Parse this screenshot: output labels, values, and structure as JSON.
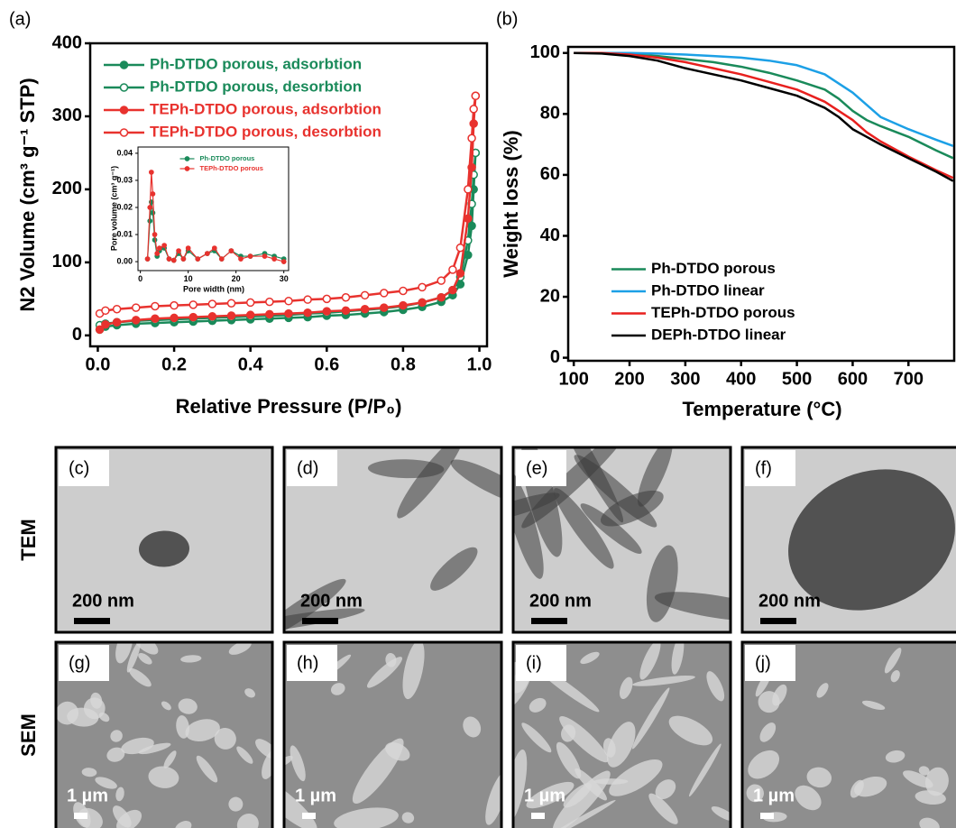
{
  "chart_data": [
    {
      "type": "line",
      "panel": "(a)",
      "xlabel": "Relative Pressure (P/P₀)",
      "ylabel": "N2 Volume (cm³ g⁻¹ STP)",
      "x": [
        0.005,
        0.02,
        0.05,
        0.1,
        0.15,
        0.2,
        0.25,
        0.3,
        0.35,
        0.4,
        0.45,
        0.5,
        0.55,
        0.6,
        0.65,
        0.7,
        0.75,
        0.8,
        0.85,
        0.9,
        0.93,
        0.95,
        0.97,
        0.98,
        0.985,
        0.99
      ],
      "series": [
        {
          "name": "Ph-DTDO porous, adsorbtion",
          "color": "#1a8a5a",
          "marker": "filled",
          "values": [
            8,
            12,
            14,
            16,
            17,
            18,
            19,
            20,
            21,
            22,
            23,
            24,
            25,
            27,
            28,
            30,
            32,
            35,
            39,
            46,
            55,
            70,
            110,
            150,
            200,
            250
          ]
        },
        {
          "name": "Ph-DTDO porous, desorbtion",
          "color": "#1a8a5a",
          "marker": "open",
          "values": [
            14,
            16,
            18,
            20,
            21,
            22,
            23,
            24,
            25,
            26,
            27,
            28,
            30,
            31,
            33,
            35,
            37,
            40,
            45,
            52,
            62,
            80,
            130,
            180,
            220,
            250
          ]
        },
        {
          "name": "TEPh-DTDO porous, adsorbtion",
          "color": "#e8322e",
          "marker": "filled",
          "values": [
            8,
            15,
            18,
            21,
            23,
            24,
            25,
            26,
            27,
            28,
            29,
            30,
            31,
            33,
            34,
            36,
            38,
            41,
            45,
            52,
            62,
            85,
            160,
            230,
            290,
            328
          ]
        },
        {
          "name": "TEPh-DTDO porous, desorbtion",
          "color": "#e8322e",
          "marker": "open",
          "values": [
            30,
            34,
            36,
            38,
            40,
            41,
            42,
            43,
            44,
            45,
            46,
            47,
            49,
            50,
            52,
            55,
            58,
            61,
            66,
            75,
            90,
            120,
            200,
            270,
            310,
            328
          ]
        }
      ],
      "xlim": [
        -0.02,
        1.02
      ],
      "ylim": [
        -15,
        400
      ],
      "xticks": [
        {
          "value": 0,
          "label": "0.0"
        },
        {
          "value": 0.2,
          "label": "0.2"
        },
        {
          "value": 0.4,
          "label": "0.4"
        },
        {
          "value": 0.6,
          "label": "0.6"
        },
        {
          "value": 0.8,
          "label": "0.8"
        },
        {
          "value": 1,
          "label": "1.0"
        }
      ],
      "yticks": [
        0,
        100,
        200,
        300,
        400
      ],
      "legend": "upper left",
      "grid": false
    },
    {
      "type": "line",
      "xlabel": "Pore width (nm)",
      "ylabel": "Pore volume (cm³ g⁻¹)",
      "x": [
        1.5,
        2,
        2.3,
        2.6,
        3,
        3.5,
        4,
        5,
        6,
        7,
        8,
        9,
        10,
        12,
        14,
        15.5,
        17,
        19,
        21,
        23,
        26,
        28,
        30
      ],
      "series": [
        {
          "name": "Ph-DTDO porous",
          "color": "#1a8a5a",
          "marker": "filled",
          "values": [
            0.001,
            0.015,
            0.022,
            0.018,
            0.008,
            0.002,
            0.004,
            0.005,
            0.001,
            0.0005,
            0.003,
            0.001,
            0.004,
            0.001,
            0.003,
            0.004,
            0.001,
            0.004,
            0.002,
            0.002,
            0.003,
            0.002,
            0.001
          ]
        },
        {
          "name": "TEPh-DTDO porous",
          "color": "#e8322e",
          "marker": "filled",
          "values": [
            0.001,
            0.02,
            0.033,
            0.025,
            0.01,
            0.003,
            0.005,
            0.006,
            0.001,
            0.0005,
            0.004,
            0.001,
            0.005,
            0.001,
            0.003,
            0.005,
            0.001,
            0.004,
            0.001,
            0.002,
            0.002,
            0.001,
            0
          ]
        }
      ],
      "xlim": [
        -0.5,
        31
      ],
      "ylim": [
        -0.0033,
        0.0423
      ],
      "xticks": [
        0,
        10,
        20,
        30
      ],
      "yticks": [
        {
          "value": 0,
          "label": "0.00"
        },
        {
          "value": 0.01,
          "label": "0.01"
        },
        {
          "value": 0.02,
          "label": "0.02"
        },
        {
          "value": 0.03,
          "label": "0.03"
        },
        {
          "value": 0.04,
          "label": "0.04"
        }
      ],
      "legend": "upper center",
      "grid": false
    },
    {
      "type": "line",
      "panel": "(b)",
      "xlabel": "Temperature (°C)",
      "ylabel": "Weight loss (%)",
      "x": [
        100,
        150,
        200,
        250,
        300,
        350,
        400,
        450,
        500,
        550,
        575,
        600,
        625,
        650,
        700,
        750,
        780
      ],
      "series": [
        {
          "name": "Ph-DTDO porous",
          "color": "#1a8a5a",
          "marker": "none",
          "values": [
            100,
            100,
            99.5,
            99,
            98,
            97,
            95.5,
            93.5,
            91,
            88,
            85,
            81,
            78,
            76,
            72.5,
            68,
            65.5
          ]
        },
        {
          "name": "Ph-DTDO linear",
          "color": "#1ca0e6",
          "marker": "none",
          "values": [
            100,
            100,
            100,
            99.8,
            99.5,
            99,
            98.5,
            97.5,
            96,
            93,
            90,
            87,
            83,
            79,
            75,
            71.5,
            69.5
          ]
        },
        {
          "name": "TEPh-DTDO porous",
          "color": "#e8201e",
          "marker": "none",
          "values": [
            100,
            100,
            99.5,
            98.5,
            97,
            95,
            93,
            90.5,
            88,
            84,
            81,
            78,
            74,
            71,
            66,
            61.5,
            59
          ]
        },
        {
          "name": "DEPh-DTDO linear",
          "color": "#000000",
          "marker": "none",
          "values": [
            100,
            99.8,
            99,
            97.5,
            95,
            93,
            91,
            88.5,
            86,
            82,
            79,
            75,
            72.5,
            70,
            65.5,
            61,
            58
          ]
        }
      ],
      "xlim": [
        90,
        782
      ],
      "ylim": [
        -1,
        102
      ],
      "xticks": [
        100,
        200,
        300,
        400,
        500,
        600,
        700
      ],
      "yticks": [
        0,
        20,
        40,
        60,
        80,
        100
      ],
      "legend": "lower left",
      "grid": false
    }
  ],
  "micrographs": {
    "rows": [
      {
        "label": "TEM",
        "panels": [
          {
            "label": "(c)",
            "scale_bar": "200 nm"
          },
          {
            "label": "(d)",
            "scale_bar": "200 nm"
          },
          {
            "label": "(e)",
            "scale_bar": "200 nm"
          },
          {
            "label": "(f)",
            "scale_bar": "200 nm"
          }
        ]
      },
      {
        "label": "SEM",
        "panels": [
          {
            "label": "(g)",
            "scale_bar": "1 µm"
          },
          {
            "label": "(h)",
            "scale_bar": "1 µm"
          },
          {
            "label": "(i)",
            "scale_bar": "1 µm"
          },
          {
            "label": "(j)",
            "scale_bar": "1 µm"
          }
        ]
      }
    ]
  }
}
